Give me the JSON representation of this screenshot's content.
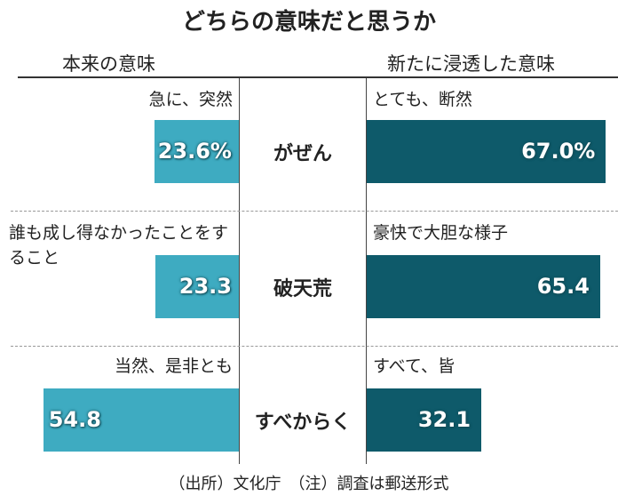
{
  "title": "どちらの意味だと思うか",
  "headers": {
    "left": "本来の意味",
    "right": "新たに浸透した意味"
  },
  "footer": "（出所）文化庁　（注）調査は郵送形式",
  "colors": {
    "original": "#3eabc1",
    "new": "#0e5a6a"
  },
  "chart_data": {
    "type": "bar",
    "orientation": "horizontal-diverging",
    "unit": "%",
    "categories": [
      "がぜん",
      "破天荒",
      "すべからく"
    ],
    "series": [
      {
        "name": "本来の意味",
        "values": [
          23.6,
          23.3,
          54.8
        ],
        "labels": [
          "23.6%",
          "23.3",
          "54.8"
        ],
        "descriptions": [
          "急に、突然",
          "誰も成し得なかったことをすること",
          "当然、是非とも"
        ]
      },
      {
        "name": "新たに浸透した意味",
        "values": [
          67.0,
          65.4,
          32.1
        ],
        "labels": [
          "67.0%",
          "65.4",
          "32.1"
        ],
        "descriptions": [
          "とても、断然",
          "豪快で大胆な様子",
          "すべて、皆"
        ]
      }
    ]
  }
}
